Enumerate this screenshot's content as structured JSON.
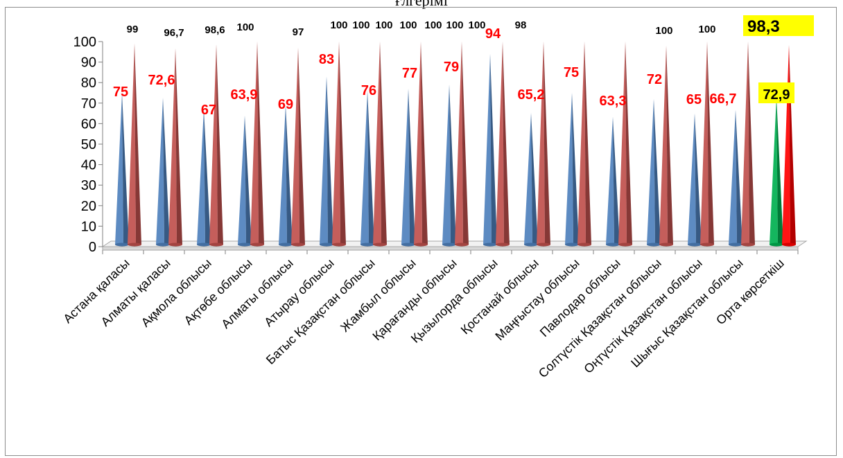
{
  "page": {
    "cut_title": "ғлгерімі"
  },
  "chart_data": {
    "type": "bar",
    "style": "3d-cones",
    "categories": [
      "Астана қаласы",
      "Алматы қаласы",
      "Ақмола облысы",
      "Ақтөбе облысы",
      "Алматы облысы",
      "Атырау облысы",
      "Батыс Қазақстан облысы",
      "Жамбыл облысы",
      "Қарағанды облысы",
      "Қызылорда облысы",
      "Қостанай облысы",
      "Маңғыстау облысы",
      "Павлодар облысы",
      "Солтүстік Қазақстан облысы",
      "Оңтүстік Қазақстан облысы",
      "Шығыс Қазақстан облысы",
      "Орта көрсеткіш"
    ],
    "series": [
      {
        "values": [
          75,
          72.6,
          67,
          63.9,
          69,
          83,
          76,
          77,
          79,
          94,
          65.2,
          75,
          63.3,
          72,
          65,
          66.7,
          72.9
        ],
        "labels": [
          "75",
          "72,6",
          "67",
          "63,9",
          "69",
          "83",
          "76",
          "77",
          "79",
          "94",
          "65,2",
          "75",
          "63,3",
          "72",
          "65",
          "66,7",
          "72,9"
        ],
        "color": "#4f81bd",
        "highlight_color": "#00b050",
        "label_color": "#ff0000"
      },
      {
        "values": [
          99,
          96.7,
          98.6,
          100,
          97,
          100,
          100,
          100,
          100,
          100,
          100,
          100,
          null,
          98,
          100,
          100,
          98.3
        ],
        "labels": [
          "99",
          "96,7",
          "98,6",
          "100",
          "97",
          "100",
          "100",
          "100",
          "100",
          "100",
          "100",
          "100",
          "",
          "98",
          "100",
          "100",
          "98,3"
        ],
        "color": "#c0504d",
        "highlight_color": "#ff0000",
        "label_color": "#000000"
      }
    ],
    "highlight_label_bg": "#ffff00",
    "y_ticks": [
      "0",
      "10",
      "20",
      "30",
      "40",
      "50",
      "60",
      "70",
      "80",
      "90",
      "100"
    ],
    "ylim": [
      0,
      100
    ],
    "grid": false,
    "legend": "none"
  }
}
